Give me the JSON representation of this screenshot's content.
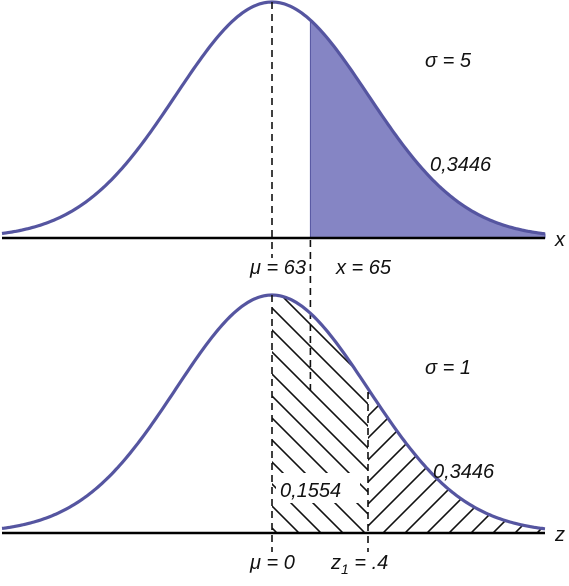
{
  "colors": {
    "curve": "#5555a0",
    "shade": "#8585c4",
    "axis": "#000000"
  },
  "top_panel": {
    "mean": 63,
    "sd": 5,
    "x_value": 65,
    "sigma_label": "σ = 5",
    "mean_label": "μ = 63",
    "value_label": "x = 65",
    "area_label": "0,3446",
    "axis_label": "x"
  },
  "bottom_panel": {
    "mean": 0,
    "sd": 1,
    "z_value": 0.4,
    "sigma_label": "σ = 1",
    "mean_label": "μ = 0",
    "z_label_prefix": "z",
    "z_label_subscript": "1",
    "z_label_suffix": " = .4",
    "middle_area_label": "0,1554",
    "tail_area_label": "0,3446",
    "axis_label": "z"
  }
}
